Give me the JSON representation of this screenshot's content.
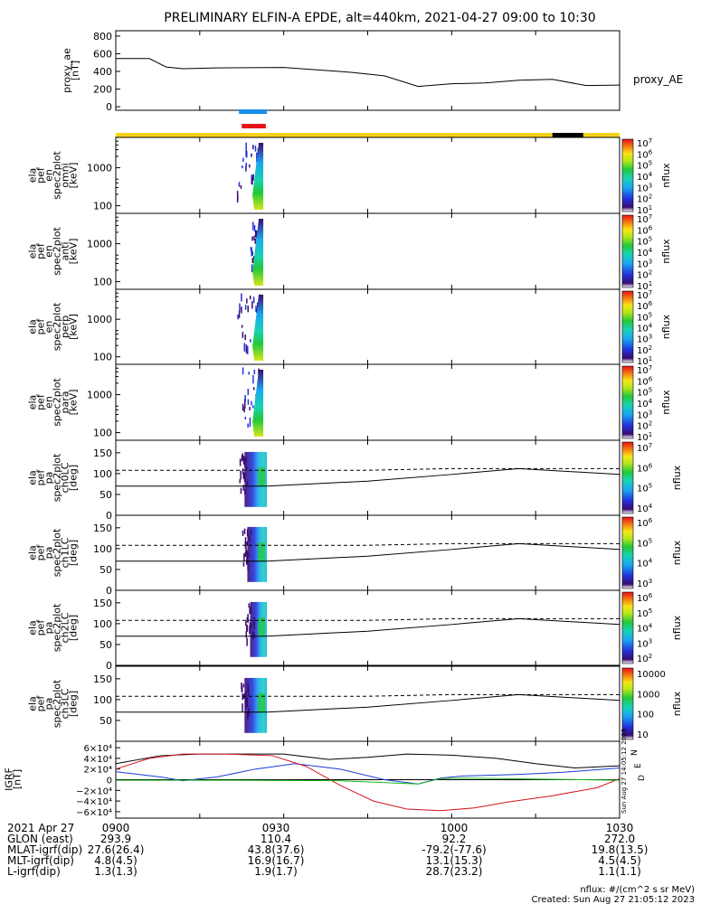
{
  "title": "PRELIMINARY ELFIN-A EPDE, alt=440km, 2021-04-27 09:00 to 10:30",
  "footer": {
    "units": "nflux: #/(cm^2 s sr MeV)",
    "created": "Created: Sun Aug 27 21:05:12 2023",
    "side_stamp": "Sun Aug 27 14:05:12 2023"
  },
  "chart_data": [
    {
      "type": "line",
      "panel": "proxy_ae",
      "ylabel": "proxy_ae [nT]",
      "series_label": "proxy_AE",
      "ylim": [
        -40,
        860
      ],
      "yticks": [
        0,
        200,
        400,
        600,
        800
      ],
      "x_minutes": [
        0,
        6,
        9,
        12,
        18,
        30,
        42,
        48,
        54,
        60,
        66,
        72,
        78,
        84,
        90
      ],
      "values": [
        545,
        545,
        450,
        430,
        440,
        445,
        390,
        350,
        230,
        260,
        270,
        300,
        310,
        240,
        245
      ]
    },
    {
      "type": "timeline-bars",
      "panel": "markers",
      "bars": [
        {
          "name": "blue",
          "color": "#1a8fe8",
          "t_start": 22.0,
          "t_end": 27.0
        },
        {
          "name": "red",
          "color": "#e8141c",
          "t_start": 22.5,
          "t_end": 26.8
        }
      ],
      "strip": {
        "color": "#f7d21a",
        "gap_color": "#000000",
        "gap_start": 78.0,
        "gap_end": 83.5
      }
    },
    {
      "type": "heatmap",
      "panel": "spec_omni",
      "ylabel": [
        "ela",
        "pef",
        "en",
        "spec2plot",
        "omni",
        "[keV]"
      ],
      "yticks": [
        100,
        1000
      ],
      "yscale": "log",
      "ylim": [
        63,
        6300
      ],
      "zlabel": "nflux",
      "zrange_exp": [
        1,
        7
      ],
      "data_interval": [
        21.5,
        27.0
      ]
    },
    {
      "type": "heatmap",
      "panel": "spec_anti",
      "ylabel": [
        "ela",
        "pef",
        "en",
        "spec2plot",
        "anti",
        "[keV]"
      ],
      "yticks": [
        100,
        1000
      ],
      "yscale": "log",
      "ylim": [
        63,
        6300
      ],
      "zlabel": "nflux",
      "zrange_exp": [
        1,
        7
      ],
      "data_interval": [
        24.0,
        27.0
      ]
    },
    {
      "type": "heatmap",
      "panel": "spec_perp",
      "ylabel": [
        "ela",
        "pef",
        "en",
        "spec2plot",
        "perp",
        "[keV]"
      ],
      "yticks": [
        100,
        1000
      ],
      "yscale": "log",
      "ylim": [
        63,
        6300
      ],
      "zlabel": "nflux",
      "zrange_exp": [
        1,
        7
      ],
      "data_interval": [
        21.5,
        27.0
      ]
    },
    {
      "type": "heatmap",
      "panel": "spec_para",
      "ylabel": [
        "ela",
        "pef",
        "en",
        "spec2plot",
        "para",
        "[keV]"
      ],
      "yticks": [
        100,
        1000
      ],
      "yscale": "log",
      "ylim": [
        63,
        6300
      ],
      "zlabel": "nflux",
      "zrange_exp": [
        1,
        7
      ],
      "data_interval": [
        22.5,
        27.0
      ]
    },
    {
      "type": "heatmap",
      "panel": "pa_ch0",
      "ylabel": [
        "ela",
        "pef",
        "pa",
        "spec2plot",
        "ch0LC",
        "[deg]"
      ],
      "yticks": [
        0,
        50,
        100,
        150
      ],
      "ylim": [
        0,
        180
      ],
      "zlabel": "nflux",
      "ztick_labels": [
        "10^4",
        "10^5",
        "10^6",
        "10^7"
      ],
      "data_interval": [
        23.0,
        27.0
      ],
      "lc_solid_deg": [
        70,
        70,
        70,
        70,
        82,
        98,
        112,
        98
      ],
      "lc_dashed_deg": [
        108,
        108,
        108,
        108,
        108,
        112,
        112,
        112
      ],
      "lc_x_minutes": [
        0,
        15,
        23,
        27,
        45,
        60,
        72,
        90
      ]
    },
    {
      "type": "heatmap",
      "panel": "pa_ch1",
      "ylabel": [
        "ela",
        "pef",
        "pa",
        "spec2plot",
        "ch1LC",
        "[deg]"
      ],
      "yticks": [
        0,
        50,
        100,
        150
      ],
      "ylim": [
        0,
        180
      ],
      "zlabel": "nflux",
      "ztick_labels": [
        "10^3",
        "10^4",
        "10^5",
        "10^6"
      ],
      "data_interval": [
        23.5,
        27.0
      ],
      "lc_solid_deg": [
        70,
        70,
        70,
        70,
        82,
        98,
        112,
        98
      ],
      "lc_dashed_deg": [
        108,
        108,
        108,
        108,
        108,
        112,
        112,
        112
      ],
      "lc_x_minutes": [
        0,
        15,
        23,
        27,
        45,
        60,
        72,
        90
      ]
    },
    {
      "type": "heatmap",
      "panel": "pa_ch2",
      "ylabel": [
        "ela",
        "pef",
        "pa",
        "spec2plot",
        "ch2LC",
        "[deg]"
      ],
      "yticks": [
        0,
        50,
        100,
        150
      ],
      "ylim": [
        0,
        180
      ],
      "zlabel": "nflux",
      "ztick_labels": [
        "10^2",
        "10^3",
        "10^4",
        "10^5",
        "10^6"
      ],
      "data_interval": [
        24.0,
        27.0
      ],
      "lc_solid_deg": [
        70,
        70,
        70,
        70,
        82,
        98,
        112,
        98
      ],
      "lc_dashed_deg": [
        108,
        108,
        108,
        108,
        108,
        112,
        112,
        112
      ],
      "lc_x_minutes": [
        0,
        15,
        23,
        27,
        45,
        60,
        72,
        90
      ]
    },
    {
      "type": "heatmap",
      "panel": "pa_ch3",
      "ylabel": [
        "ela",
        "pef",
        "pa",
        "spec2plot",
        "ch3LC",
        "[deg]"
      ],
      "yticks": [
        50,
        100,
        150
      ],
      "ylim": [
        0,
        180
      ],
      "zlabel": "nflux",
      "ztick_labels": [
        "10",
        "100",
        "1000",
        "10000"
      ],
      "data_interval": [
        23.0,
        27.0
      ],
      "lc_solid_deg": [
        70,
        70,
        70,
        70,
        82,
        98,
        112,
        98
      ],
      "lc_dashed_deg": [
        108,
        108,
        108,
        108,
        108,
        112,
        112,
        112
      ],
      "lc_x_minutes": [
        0,
        15,
        23,
        27,
        45,
        60,
        72,
        90
      ]
    },
    {
      "type": "line",
      "panel": "igrf",
      "ylabel": "IGRF [nT]",
      "ytick_labels": [
        "6×10⁴",
        "4×10⁴",
        "2×10⁴",
        "0",
        "−2×10⁴",
        "−4×10⁴",
        "−6×10⁴"
      ],
      "ytick_values": [
        60000,
        40000,
        20000,
        0,
        -20000,
        -40000,
        -60000
      ],
      "ylim": [
        -72000,
        72000
      ],
      "legend": [
        "N",
        "E",
        "D"
      ],
      "series": [
        {
          "name": "N",
          "color": "#000000",
          "x": [
            0,
            8,
            15,
            22,
            30,
            38,
            45,
            52,
            60,
            68,
            75,
            82,
            90
          ],
          "y": [
            30000,
            45000,
            48000,
            48000,
            48000,
            38000,
            42000,
            48000,
            46000,
            40000,
            30000,
            22000,
            26000
          ]
        },
        {
          "name": "E",
          "color": "#1a3ad6",
          "x": [
            0,
            8,
            12,
            18,
            25,
            32,
            40,
            48,
            54,
            58,
            62,
            66,
            72,
            80,
            90
          ],
          "y": [
            15000,
            5000,
            -2000,
            5000,
            20000,
            30000,
            20000,
            0,
            -8000,
            3000,
            7000,
            8000,
            10000,
            14000,
            22000
          ]
        },
        {
          "name": "D",
          "color": "#d4141c",
          "x": [
            0,
            6,
            12,
            20,
            28,
            34,
            40,
            46,
            52,
            58,
            64,
            70,
            78,
            86,
            90
          ],
          "y": [
            20000,
            40000,
            48000,
            48000,
            45000,
            25000,
            -10000,
            -40000,
            -55000,
            -58000,
            -53000,
            -42000,
            -30000,
            -15000,
            2000
          ]
        },
        {
          "name": "green",
          "color": "#18b818",
          "x": [
            0,
            20,
            40,
            54,
            58,
            62,
            70,
            80,
            90
          ],
          "y": [
            -1000,
            -1000,
            -2000,
            -8000,
            2000,
            3000,
            2000,
            500,
            -1000
          ]
        }
      ]
    }
  ],
  "xaxis": {
    "t_start_minutes": 0,
    "t_end_minutes": 90,
    "ticks_minutes": [
      0,
      30,
      60,
      90
    ],
    "rows": [
      {
        "name": "2021 Apr 27",
        "values": [
          "0900",
          "0930",
          "1000",
          "1030"
        ]
      },
      {
        "name": "GLON (east)",
        "values": [
          "293.9",
          "110.4",
          "92.2",
          "272.0"
        ]
      },
      {
        "name": "MLAT-igrf(dip)",
        "values": [
          "27.6(26.4)",
          "43.8(37.6)",
          "-79.2(-77.6)",
          "19.8(13.5)"
        ]
      },
      {
        "name": "MLT-igrf(dip)",
        "values": [
          "4.8(4.5)",
          "16.9(16.7)",
          "13.1(15.3)",
          "4.5(4.5)"
        ]
      },
      {
        "name": "L-igrf(dip)",
        "values": [
          "1.3(1.3)",
          "1.9(1.7)",
          "28.7(23.2)",
          "1.1(1.1)"
        ]
      }
    ]
  },
  "colorbar_exponents": [
    "10^1",
    "10^2",
    "10^3",
    "10^4",
    "10^5",
    "10^6",
    "10^7"
  ]
}
